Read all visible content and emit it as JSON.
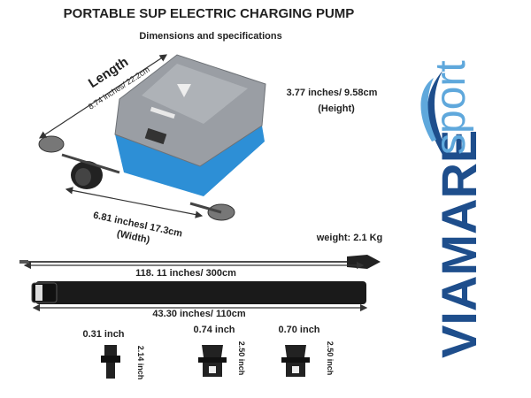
{
  "header": {
    "title": "PORTABLE SUP ELECTRIC CHARGING PUMP",
    "subtitle": "Dimensions and specifications"
  },
  "pump": {
    "length_label": "Length",
    "length": "8.74 inches/ 22.2cm",
    "height": "3.77 inches/ 9.58cm",
    "height_label": "(Height)",
    "width": "6.81 inchesl 17.3cm",
    "width_label": "(Width)"
  },
  "weight": "weight: 2.1 Kg",
  "cable": {
    "length": "118. 11 inches/ 300cm"
  },
  "hose": {
    "length": "43.30 inches/ 110cm"
  },
  "nozzles": [
    {
      "width": "0.31 inch",
      "height": "2.14 inch"
    },
    {
      "width": "0.74 inch",
      "height": "2.50 inch"
    },
    {
      "width": "0.70 inch",
      "height": "2.50 inch"
    }
  ],
  "brand": {
    "name": "VIAMARE",
    "suffix": "sport"
  }
}
